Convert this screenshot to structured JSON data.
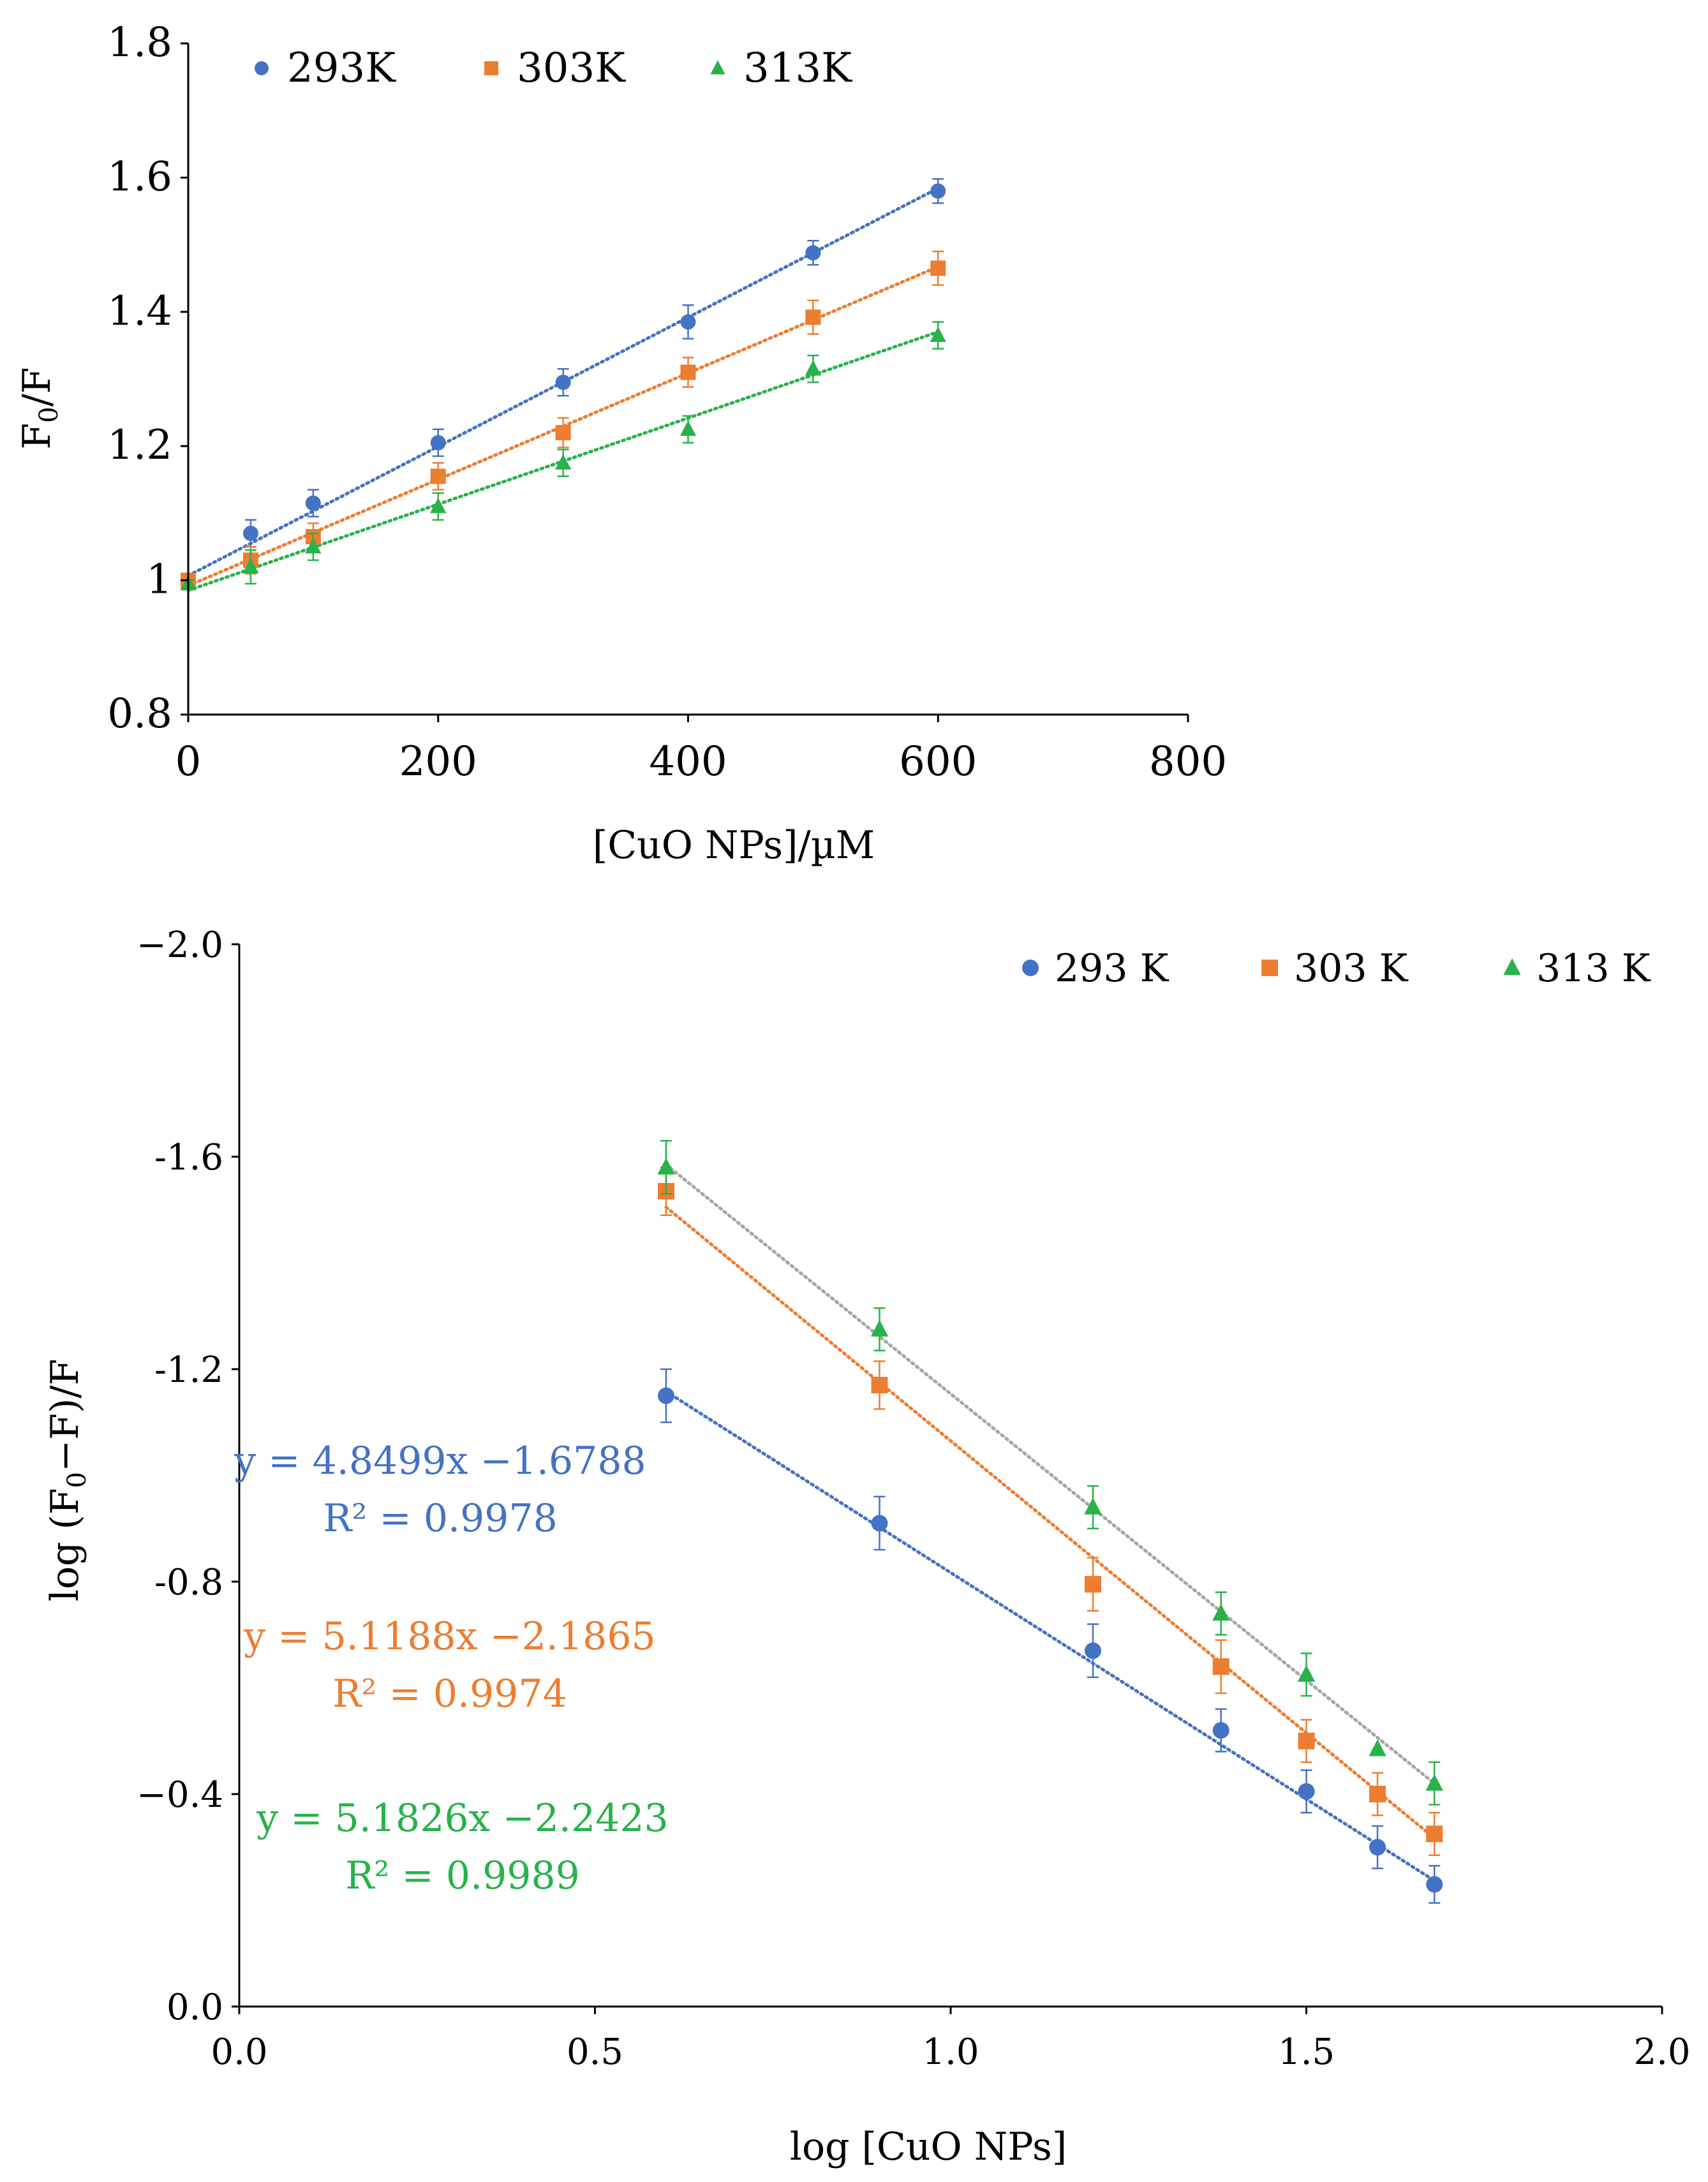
{
  "colors": {
    "blue": "#4472C4",
    "orange": "#ED7D31",
    "green": "#27B24A",
    "gray": "#A6A6A6",
    "axis": "#000000"
  },
  "chart_data": [
    {
      "type": "scatter",
      "title": "",
      "xlabel": "[CuO NPs]/µM",
      "ylabel_main": "F",
      "ylabel_sub": "0",
      "ylabel_tail": "/F",
      "xlim": [
        0,
        800
      ],
      "ylim": [
        0.8,
        1.8
      ],
      "xticks": [
        0,
        200,
        400,
        600,
        800
      ],
      "xtick_labels": [
        "0",
        "200",
        "400",
        "600",
        "800"
      ],
      "yticks": [
        0.8,
        1.0,
        1.2,
        1.4,
        1.6,
        1.8
      ],
      "ytick_labels": [
        "0.8",
        "1",
        "1.2",
        "1.4",
        "1.6",
        "1.8"
      ],
      "legend_position": "top",
      "x": [
        0,
        50,
        100,
        200,
        300,
        400,
        500,
        600
      ],
      "series": [
        {
          "name": "293K",
          "marker": "circle",
          "color": "#4472C4",
          "values": [
            1.0,
            1.07,
            1.115,
            1.205,
            1.295,
            1.385,
            1.488,
            1.58
          ],
          "errors": [
            0.005,
            0.02,
            0.02,
            0.02,
            0.02,
            0.025,
            0.018,
            0.018
          ],
          "fit": [
            1.007,
            0.000962
          ]
        },
        {
          "name": "303K",
          "marker": "square",
          "color": "#ED7D31",
          "values": [
            1.0,
            1.03,
            1.065,
            1.155,
            1.22,
            1.31,
            1.392,
            1.465
          ],
          "errors": [
            0.005,
            0.02,
            0.02,
            0.02,
            0.022,
            0.022,
            0.025,
            0.025
          ],
          "fit": [
            0.992,
            0.000792
          ]
        },
        {
          "name": "313K",
          "marker": "triangle",
          "color": "#27B24A",
          "values": [
            0.995,
            1.02,
            1.05,
            1.11,
            1.175,
            1.225,
            1.315,
            1.365
          ],
          "errors": [
            0.005,
            0.025,
            0.02,
            0.02,
            0.02,
            0.02,
            0.02,
            0.02
          ],
          "fit": [
            0.985,
            0.000642
          ]
        }
      ]
    },
    {
      "type": "scatter",
      "title": "",
      "xlabel": "log [CuO NPs]",
      "ylabel_main": "log (F",
      "ylabel_sub": "0",
      "ylabel_tail": "−F)/F",
      "xlim": [
        0.0,
        2.0
      ],
      "ylim": [
        0.0,
        -2.0
      ],
      "xticks": [
        0.0,
        0.5,
        1.0,
        1.5,
        2.0
      ],
      "xtick_labels": [
        "0.0",
        "0.5",
        "1.0",
        "1.5",
        "2.0"
      ],
      "yticks": [
        0.0,
        -0.4,
        -0.8,
        -1.2,
        -1.6,
        -2.0
      ],
      "ytick_labels": [
        "0.0",
        "−0.4",
        "-0.8",
        "-1.2",
        "-1.6",
        "−2.0"
      ],
      "legend_position": "top-right",
      "x": [
        0.6,
        0.9,
        1.2,
        1.38,
        1.5,
        1.6,
        1.68
      ],
      "series": [
        {
          "name": "293 K",
          "marker": "circle",
          "color": "#4472C4",
          "values": [
            -1.15,
            -0.91,
            -0.67,
            -0.52,
            -0.405,
            -0.3,
            -0.23
          ],
          "errors": [
            0.05,
            0.05,
            0.05,
            0.04,
            0.04,
            0.04,
            0.035
          ],
          "fit_from": [
            0.6,
            -1.158
          ],
          "fit_to": [
            1.68,
            -0.237
          ],
          "fit_color": "#4472C4",
          "equation": "y = 4.8499x −1.6788",
          "r2": "R² = 0.9978"
        },
        {
          "name": "303 K",
          "marker": "square",
          "color": "#ED7D31",
          "values": [
            -1.535,
            -1.17,
            -0.795,
            -0.64,
            -0.5,
            -0.4,
            -0.325
          ],
          "errors": [
            0.045,
            0.045,
            0.05,
            0.05,
            0.04,
            0.04,
            0.04
          ],
          "fit_from": [
            0.6,
            -1.505
          ],
          "fit_to": [
            1.68,
            -0.317
          ],
          "fit_color": "#ED7D31",
          "equation": "y = 5.1188x −2.1865",
          "r2": "R² = 0.9974"
        },
        {
          "name": "313 K",
          "marker": "triangle",
          "color": "#27B24A",
          "values": [
            -1.58,
            -1.275,
            -0.94,
            -0.74,
            -0.625,
            -0.485,
            -0.42
          ],
          "errors": [
            0.05,
            0.04,
            0.04,
            0.04,
            0.04,
            0.0,
            0.04
          ],
          "fit_from": [
            0.6,
            -1.585
          ],
          "fit_to": [
            1.68,
            -0.42
          ],
          "fit_color": "#A6A6A6",
          "equation": "y = 5.1826x −2.2423",
          "r2": "R² = 0.9989"
        }
      ]
    }
  ]
}
